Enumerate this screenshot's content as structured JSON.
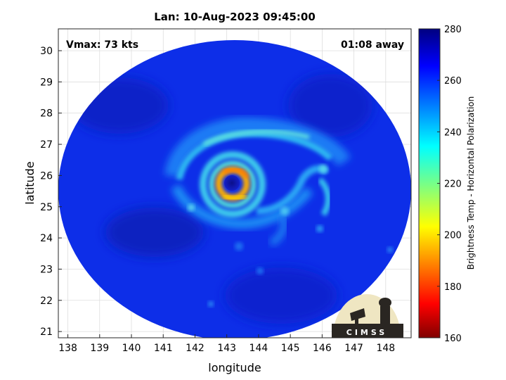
{
  "chart_data": {
    "type": "heatmap",
    "title": "Lan: 10-Aug-2023 09:45:00",
    "xlabel": "longitude",
    "ylabel": "latitude",
    "xlim": [
      137.7,
      148.8
    ],
    "ylim": [
      20.8,
      30.7
    ],
    "xticks": [
      "138",
      "139",
      "140",
      "141",
      "142",
      "143",
      "144",
      "145",
      "146",
      "147",
      "148"
    ],
    "yticks": [
      "21",
      "22",
      "23",
      "24",
      "25",
      "26",
      "27",
      "28",
      "29",
      "30"
    ],
    "annotation_left": "Vmax: 73 kts",
    "annotation_right": "01:08 away",
    "colorbar": {
      "label": "Brightness Temp - Horizontal Polarization",
      "range": [
        160,
        280
      ],
      "ticks": [
        "160",
        "180",
        "200",
        "220",
        "240",
        "260",
        "280"
      ],
      "colormap": "jet"
    },
    "storm_center": {
      "lon": 143.3,
      "lat": 25.75
    },
    "eyewall_min_temp": 205,
    "background_temp": 262,
    "grid": true,
    "logo": "CIMSS"
  }
}
